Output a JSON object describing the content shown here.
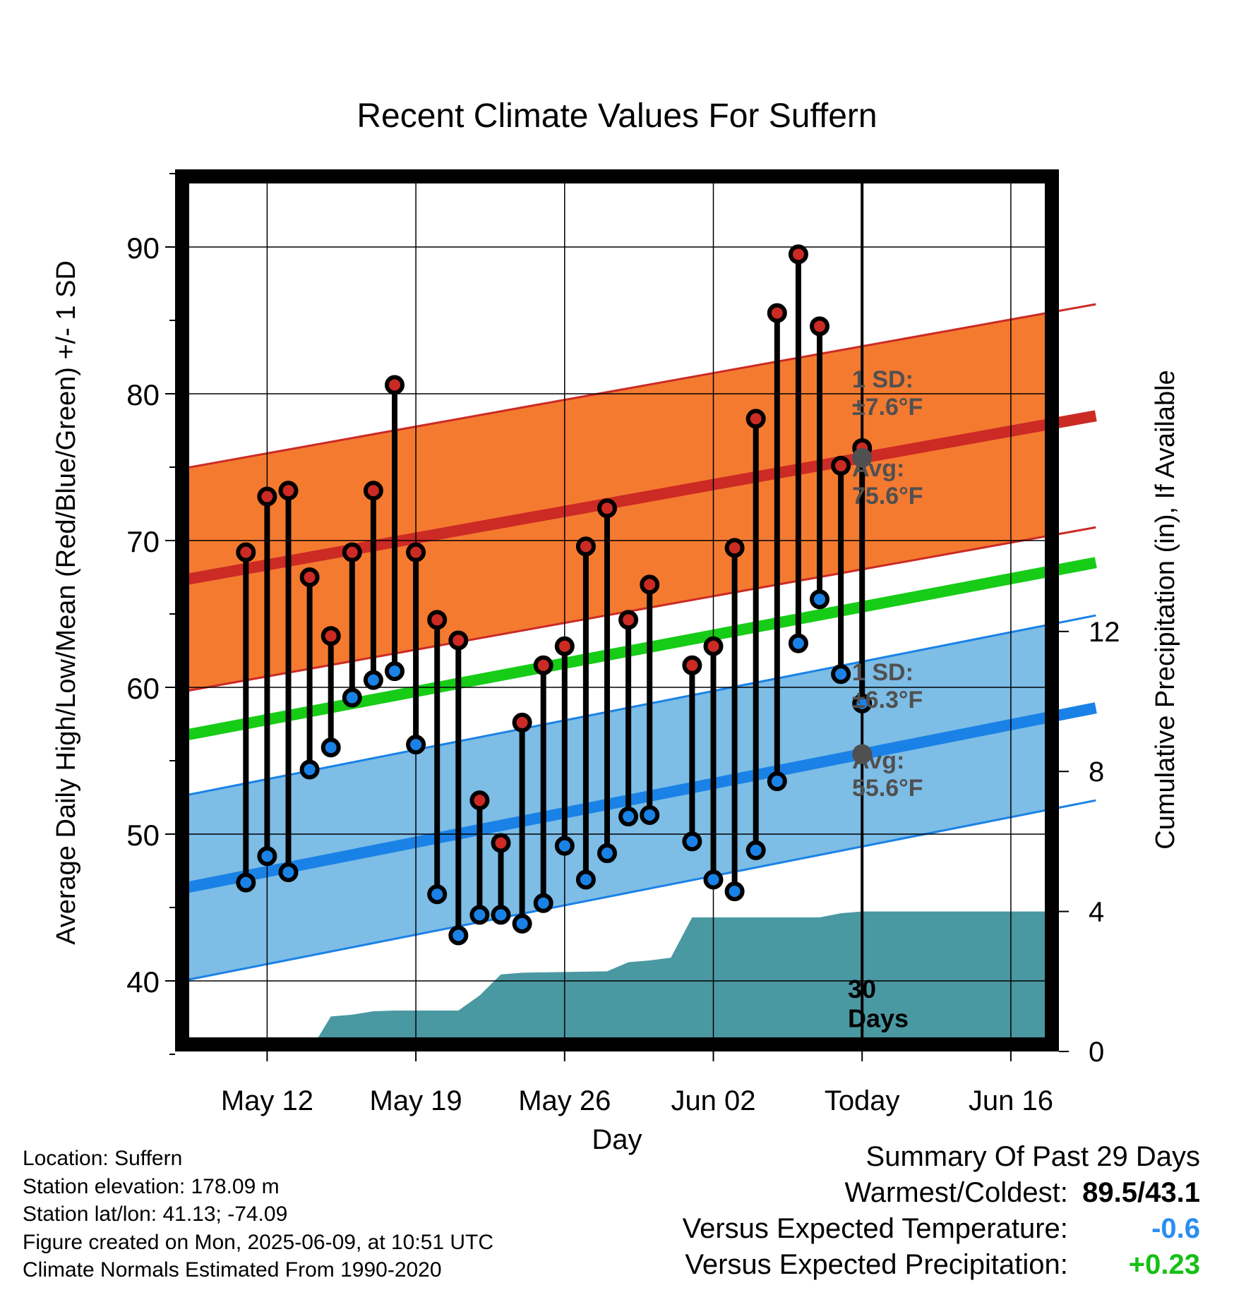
{
  "chart_data": {
    "type": "line",
    "title": "Recent Climate Values For Suffern",
    "xlabel": "Day",
    "ylabel": "Average Daily High/Low/Mean (Red/Blue/Green) +/- 1 SD",
    "ylabel_right": "Cumulative Precipitation (in), If Available",
    "ylim": [
      35,
      95
    ],
    "ylim_right": [
      0,
      25
    ],
    "y_ticks": [
      40,
      50,
      60,
      70,
      80,
      90
    ],
    "y_ticks_right": [
      0,
      4,
      8,
      12
    ],
    "x_range": [
      "2025-05-08",
      "2025-06-20"
    ],
    "x_tick_labels": [
      {
        "date": "2025-05-12",
        "label": "May 12"
      },
      {
        "date": "2025-05-19",
        "label": "May 19"
      },
      {
        "date": "2025-05-26",
        "label": "May 26"
      },
      {
        "date": "2025-06-02",
        "label": "Jun 02"
      },
      {
        "date": "2025-06-09",
        "label": "Today"
      },
      {
        "date": "2025-06-16",
        "label": "Jun 16"
      }
    ],
    "grid": true,
    "today": "2025-06-09",
    "today_label": "30\nDays",
    "colors": {
      "high": "#cc2a24",
      "high_band": "#f47a30",
      "low": "#1a82e6",
      "low_band": "#7dbde6",
      "mean": "#17cc17",
      "precip": "#4a98a2",
      "annotation": "#505050"
    },
    "normals": {
      "start": "2025-05-08",
      "end": "2025-06-20",
      "high_avg": [
        67.3,
        78.5
      ],
      "high_sd": 7.6,
      "low_avg": [
        46.3,
        58.6
      ],
      "low_sd": 6.3,
      "mean_avg": [
        56.7,
        68.5
      ]
    },
    "annotations": {
      "high_sd": "1 SD:\n±7.6°F",
      "high_avg": "Avg:\n75.6°F",
      "low_sd": "1 SD:\n±6.3°F",
      "low_avg": "Avg:\n55.6°F"
    },
    "observations": [
      {
        "date": "2025-05-11",
        "high": 69.2,
        "low": 46.7
      },
      {
        "date": "2025-05-12",
        "high": 73.0,
        "low": 48.5
      },
      {
        "date": "2025-05-13",
        "high": 73.4,
        "low": 47.4
      },
      {
        "date": "2025-05-14",
        "high": 67.5,
        "low": 54.4
      },
      {
        "date": "2025-05-15",
        "high": 63.5,
        "low": 55.9
      },
      {
        "date": "2025-05-16",
        "high": 69.2,
        "low": 59.3
      },
      {
        "date": "2025-05-17",
        "high": 73.4,
        "low": 60.5
      },
      {
        "date": "2025-05-18",
        "high": 80.6,
        "low": 61.1
      },
      {
        "date": "2025-05-19",
        "high": 69.2,
        "low": 56.1
      },
      {
        "date": "2025-05-20",
        "high": 64.6,
        "low": 45.9
      },
      {
        "date": "2025-05-21",
        "high": 63.2,
        "low": 43.1
      },
      {
        "date": "2025-05-22",
        "high": 52.3,
        "low": 44.5
      },
      {
        "date": "2025-05-23",
        "high": 49.4,
        "low": 44.5
      },
      {
        "date": "2025-05-24",
        "high": 57.6,
        "low": 43.9
      },
      {
        "date": "2025-05-25",
        "high": 61.5,
        "low": 45.3
      },
      {
        "date": "2025-05-26",
        "high": 62.8,
        "low": 49.2
      },
      {
        "date": "2025-05-27",
        "high": 69.6,
        "low": 46.9
      },
      {
        "date": "2025-05-28",
        "high": 72.2,
        "low": 48.7
      },
      {
        "date": "2025-05-29",
        "high": 64.6,
        "low": 51.2
      },
      {
        "date": "2025-05-30",
        "high": 67.0,
        "low": 51.3
      },
      {
        "date": "2025-06-01",
        "high": 61.5,
        "low": 49.5
      },
      {
        "date": "2025-06-02",
        "high": 62.8,
        "low": 46.9
      },
      {
        "date": "2025-06-03",
        "high": 69.5,
        "low": 46.1
      },
      {
        "date": "2025-06-04",
        "high": 78.3,
        "low": 48.9
      },
      {
        "date": "2025-06-05",
        "high": 85.5,
        "low": 53.6
      },
      {
        "date": "2025-06-06",
        "high": 89.5,
        "low": 63.0
      },
      {
        "date": "2025-06-07",
        "high": 84.6,
        "low": 66.0
      },
      {
        "date": "2025-06-08",
        "high": 75.1,
        "low": 60.9
      },
      {
        "date": "2025-06-09",
        "high": 76.3,
        "low": 58.9
      }
    ],
    "cumulative_precip": [
      {
        "date": "2025-05-12",
        "value": 0
      },
      {
        "date": "2025-05-13",
        "value": 0
      },
      {
        "date": "2025-05-14",
        "value": 0
      },
      {
        "date": "2025-05-15",
        "value": 1.0
      },
      {
        "date": "2025-05-16",
        "value": 1.05
      },
      {
        "date": "2025-05-17",
        "value": 1.15
      },
      {
        "date": "2025-05-18",
        "value": 1.17
      },
      {
        "date": "2025-05-19",
        "value": 1.17
      },
      {
        "date": "2025-05-20",
        "value": 1.17
      },
      {
        "date": "2025-05-21",
        "value": 1.17
      },
      {
        "date": "2025-05-22",
        "value": 1.6
      },
      {
        "date": "2025-05-23",
        "value": 2.2
      },
      {
        "date": "2025-05-24",
        "value": 2.25
      },
      {
        "date": "2025-05-25",
        "value": 2.26
      },
      {
        "date": "2025-05-26",
        "value": 2.27
      },
      {
        "date": "2025-05-27",
        "value": 2.28
      },
      {
        "date": "2025-05-28",
        "value": 2.29
      },
      {
        "date": "2025-05-29",
        "value": 2.55
      },
      {
        "date": "2025-05-30",
        "value": 2.6
      },
      {
        "date": "2025-05-31",
        "value": 2.68
      },
      {
        "date": "2025-06-01",
        "value": 3.83
      },
      {
        "date": "2025-06-02",
        "value": 3.83
      },
      {
        "date": "2025-06-03",
        "value": 3.83
      },
      {
        "date": "2025-06-04",
        "value": 3.83
      },
      {
        "date": "2025-06-05",
        "value": 3.83
      },
      {
        "date": "2025-06-06",
        "value": 3.83
      },
      {
        "date": "2025-06-07",
        "value": 3.83
      },
      {
        "date": "2025-06-08",
        "value": 3.95
      },
      {
        "date": "2025-06-09",
        "value": 4.0
      },
      {
        "date": "2025-06-20",
        "value": 4.0
      }
    ]
  },
  "footer": {
    "location": "Location: Suffern",
    "elevation": "Station elevation: 178.09 m",
    "latlon": "Station lat/lon: 41.13; -74.09",
    "created": "Figure created on Mon, 2025-06-09, at 10:51 UTC",
    "normals": "Climate Normals Estimated From 1990-2020"
  },
  "summary": {
    "title": "Summary Of Past 29 Days",
    "warmest_coldest_label": "Warmest/Coldest:",
    "warmest_coldest_value": "89.5/43.1",
    "temp_label": "Versus Expected Temperature:",
    "temp_value": "-0.6",
    "temp_color": "#2a8ef0",
    "precip_label": "Versus Expected Precipitation:",
    "precip_value": "+0.23",
    "precip_color": "#16c016"
  }
}
